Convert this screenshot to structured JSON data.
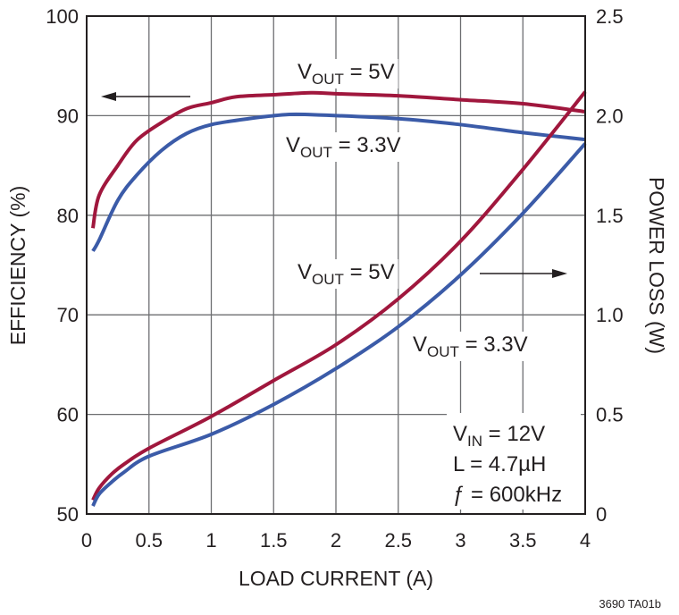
{
  "chart_data": {
    "type": "line",
    "xlabel": "LOAD CURRENT (A)",
    "ylabel": "EFFICIENCY (%)",
    "y2label": "POWER LOSS (W)",
    "xlim": [
      0,
      4
    ],
    "ylim": [
      50,
      100
    ],
    "y2lim": [
      0,
      2.5
    ],
    "grid": true,
    "xticks": [
      "0",
      "0.5",
      "1",
      "1.5",
      "2",
      "2.5",
      "3",
      "3.5",
      "4"
    ],
    "yticks": [
      "50",
      "60",
      "70",
      "80",
      "90",
      "100"
    ],
    "y2ticks": [
      "0",
      "0.5",
      "1.0",
      "1.5",
      "2.0",
      "2.5"
    ],
    "colors": {
      "vout_5v": "#a0173d",
      "vout_3v3": "#3b5ba8"
    },
    "series": [
      {
        "label": [
          "V",
          "OUT",
          " = 5V"
        ],
        "axis": "left",
        "color_key": "vout_5v",
        "x": [
          0.05,
          0.1,
          0.25,
          0.4,
          0.6,
          0.8,
          1.0,
          1.2,
          1.5,
          1.8,
          2.0,
          2.5,
          3.0,
          3.5,
          4.0
        ],
        "y": [
          78.7,
          82,
          85,
          87.5,
          89.3,
          90.7,
          91.3,
          91.9,
          92.1,
          92.3,
          92.2,
          92.0,
          91.6,
          91.2,
          90.4
        ]
      },
      {
        "label": [
          "V",
          "OUT",
          " = 3.3V"
        ],
        "axis": "left",
        "color_key": "vout_3v3",
        "x": [
          0.05,
          0.1,
          0.25,
          0.4,
          0.6,
          0.8,
          1.0,
          1.3,
          1.6,
          1.8,
          2.5,
          3.0,
          3.5,
          4.0
        ],
        "y": [
          76.4,
          77.5,
          81.5,
          84,
          86.5,
          88.2,
          89.1,
          89.7,
          90.1,
          90.1,
          89.7,
          89.1,
          88.3,
          87.6
        ]
      },
      {
        "label": [
          "V",
          "OUT",
          " = 5V"
        ],
        "axis": "right",
        "color_key": "vout_5v",
        "x": [
          0.05,
          0.1,
          0.2,
          0.3,
          0.5,
          1.0,
          1.5,
          2.0,
          2.5,
          3.0,
          3.5,
          4.0
        ],
        "y": [
          0.07,
          0.13,
          0.2,
          0.25,
          0.33,
          0.49,
          0.67,
          0.85,
          1.08,
          1.37,
          1.73,
          2.12
        ]
      },
      {
        "label": [
          "V",
          "OUT",
          " = 3.3V"
        ],
        "axis": "right",
        "color_key": "vout_3v3",
        "x": [
          0.05,
          0.1,
          0.2,
          0.3,
          0.5,
          1.0,
          1.5,
          2.0,
          2.5,
          3.0,
          3.5,
          4.0
        ],
        "y": [
          0.04,
          0.1,
          0.16,
          0.21,
          0.29,
          0.4,
          0.55,
          0.73,
          0.94,
          1.2,
          1.51,
          1.86
        ]
      }
    ],
    "conditions": [
      "V|IN| = 12V",
      "L = 4.7µH",
      "ƒ = 600kHz"
    ],
    "conditions_parts": [
      [
        "V",
        "IN",
        " = 12V"
      ],
      [
        "L = 4.7µH"
      ],
      [
        "ƒ = 600kHz"
      ]
    ],
    "note": "3690 TA01b"
  }
}
